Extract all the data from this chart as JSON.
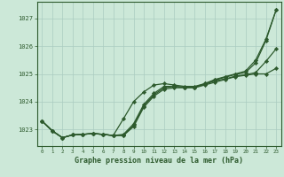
{
  "background_color": "#cce8d8",
  "grid_color": "#aaccc0",
  "line_color": "#2d5a2d",
  "marker_color": "#2d5a2d",
  "title": "Graphe pression niveau de la mer (hPa)",
  "xlim": [
    -0.5,
    23.5
  ],
  "ylim": [
    1022.4,
    1027.6
  ],
  "yticks": [
    1023,
    1024,
    1025,
    1026,
    1027
  ],
  "xticks": [
    0,
    1,
    2,
    3,
    4,
    5,
    6,
    7,
    8,
    9,
    10,
    11,
    12,
    13,
    14,
    15,
    16,
    17,
    18,
    19,
    20,
    21,
    22,
    23
  ],
  "series1": [
    1023.3,
    1022.95,
    1022.7,
    1022.8,
    1022.82,
    1022.85,
    1022.82,
    1022.78,
    1022.78,
    1023.1,
    1023.8,
    1024.2,
    1024.45,
    1024.5,
    1024.5,
    1024.5,
    1024.6,
    1024.7,
    1024.8,
    1024.9,
    1024.95,
    1025.0,
    1025.0,
    1025.2
  ],
  "series2": [
    1023.3,
    1022.95,
    1022.7,
    1022.8,
    1022.82,
    1022.85,
    1022.82,
    1022.78,
    1022.78,
    1023.15,
    1023.85,
    1024.25,
    1024.5,
    1024.55,
    1024.52,
    1024.52,
    1024.62,
    1024.75,
    1024.82,
    1024.92,
    1024.97,
    1025.05,
    1025.45,
    1025.9
  ],
  "series3": [
    1023.3,
    1022.95,
    1022.7,
    1022.8,
    1022.82,
    1022.85,
    1022.82,
    1022.78,
    1022.82,
    1023.2,
    1023.9,
    1024.3,
    1024.55,
    1024.55,
    1024.52,
    1024.52,
    1024.65,
    1024.78,
    1024.88,
    1024.98,
    1025.05,
    1025.4,
    1026.2,
    1027.3
  ],
  "series4": [
    1023.3,
    1022.95,
    1022.7,
    1022.8,
    1022.82,
    1022.85,
    1022.82,
    1022.78,
    1023.38,
    1024.0,
    1024.35,
    1024.6,
    1024.65,
    1024.6,
    1024.55,
    1024.55,
    1024.65,
    1024.8,
    1024.9,
    1025.0,
    1025.1,
    1025.5,
    1026.25,
    1027.3
  ]
}
